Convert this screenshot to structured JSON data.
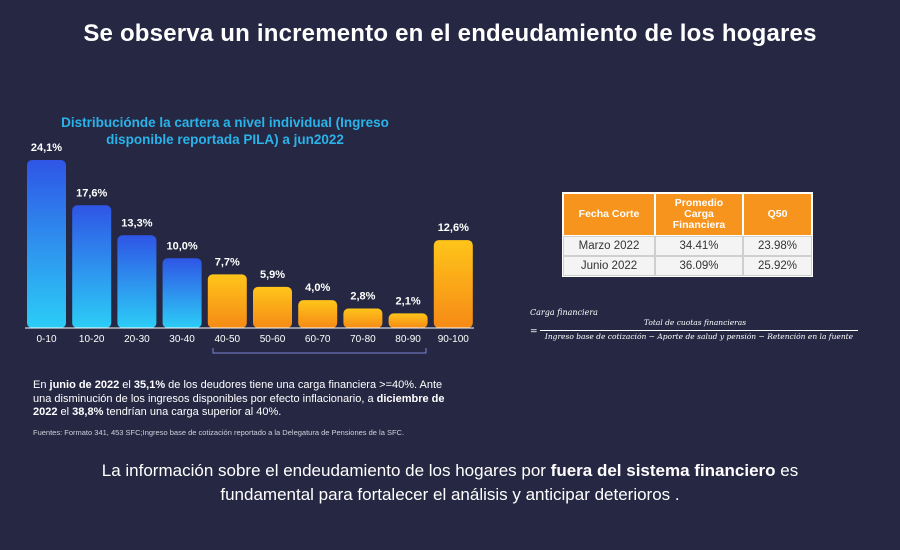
{
  "header": {
    "title": "Se observa un incremento en el endeudamiento de los hogares"
  },
  "chart_data": {
    "type": "bar",
    "title_line1": "Distribuciónde la cartera a nivel individual (Ingreso",
    "title_line2": "disponible reportada PILA) a jun2022",
    "categories": [
      "0-10",
      "10-20",
      "20-30",
      "30-40",
      "40-50",
      "50-60",
      "60-70",
      "70-80",
      "80-90",
      "90-100"
    ],
    "values": [
      24.1,
      17.6,
      13.3,
      10.0,
      7.7,
      5.9,
      4.0,
      2.8,
      2.1,
      12.6
    ],
    "labels": [
      "24,1%",
      "17,6%",
      "13,3%",
      "10,0%",
      "7,7%",
      "5,9%",
      "4,0%",
      "2,8%",
      "2,1%",
      "12,6%"
    ],
    "ylim": [
      0,
      24.1
    ],
    "colors": {
      "blue_top": "#2f55e6",
      "blue_bottom": "#2ccdf6",
      "orange_top": "#ffc51a",
      "orange_bottom": "#f58a16"
    },
    "grid": false
  },
  "note": {
    "p1": "En ",
    "b1": "junio de 2022",
    "p2": " el ",
    "b2": "35,1%",
    "p3": " de los deudores tiene una carga financiera >=40%. Ante una disminución de los ingresos disponibles por efecto inflacionario, a ",
    "b3": "diciembre de 2022",
    "p4": " el ",
    "b4": "38,8%",
    "p5": " tendrían una carga superior al 40%."
  },
  "source": "Fuentes: Formato 341, 453 SFC;Ingreso base de cotización reportado a la Delegatura de Pensiones de la SFC.",
  "table": {
    "headers": [
      "Fecha Corte",
      "Promedio Carga Financiera",
      "Q50"
    ],
    "rows": [
      [
        "Marzo 2022",
        "34.41%",
        "23.98%"
      ],
      [
        "Junio 2022",
        "36.09%",
        "25.92%"
      ]
    ],
    "header_color": "#f7941d"
  },
  "formula": {
    "lhs": "Carga financiera",
    "eq": "=",
    "numerator": "Total de cuotas financieras",
    "denominator": "Ingreso base de cotización − Aporte de salud y pensión − Retención en la fuente"
  },
  "footer": {
    "p1": "La información sobre el endeudamiento de los hogares por ",
    "b1": "fuera del sistema financiero",
    "p2": " es",
    "line2": "fundamental para fortalecer el análisis y anticipar deterioros ."
  }
}
